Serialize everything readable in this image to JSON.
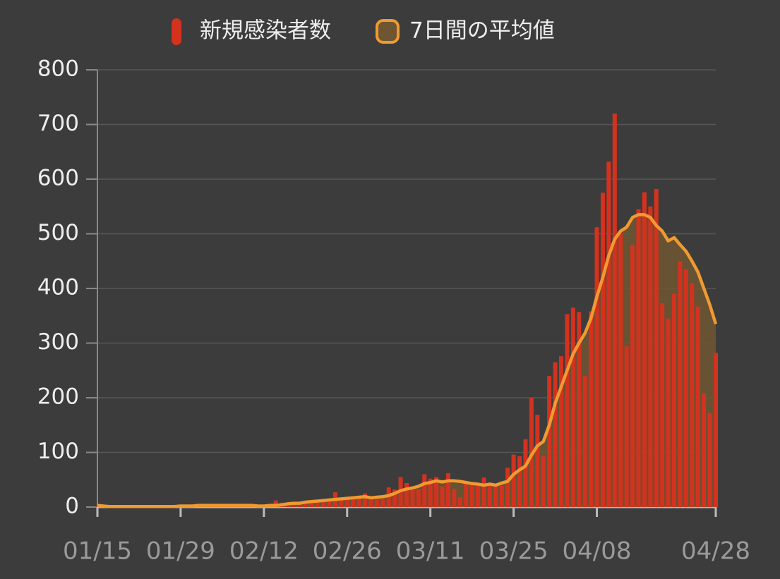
{
  "chart_data": {
    "type": "bar_line",
    "categories": [
      "01/15",
      null,
      null,
      null,
      null,
      null,
      null,
      null,
      null,
      null,
      null,
      null,
      null,
      null,
      "01/29",
      null,
      null,
      null,
      null,
      null,
      null,
      null,
      null,
      null,
      null,
      null,
      null,
      null,
      "02/12",
      null,
      null,
      null,
      null,
      null,
      null,
      null,
      null,
      null,
      null,
      null,
      null,
      null,
      "02/26",
      null,
      null,
      null,
      null,
      null,
      null,
      null,
      null,
      null,
      null,
      null,
      null,
      null,
      "03/11",
      null,
      null,
      null,
      null,
      null,
      null,
      null,
      null,
      null,
      null,
      null,
      null,
      null,
      "03/25",
      null,
      null,
      null,
      null,
      null,
      null,
      null,
      null,
      null,
      null,
      null,
      null,
      null,
      "04/08",
      null,
      null,
      null,
      null,
      null,
      null,
      null,
      null,
      null,
      null,
      null,
      null,
      null,
      null,
      null,
      null,
      null,
      null,
      null,
      "04/28"
    ],
    "series": [
      {
        "name": "新規感染者数",
        "color": "#d2321e",
        "values": [
          1,
          0,
          0,
          0,
          0,
          1,
          0,
          1,
          0,
          0,
          1,
          2,
          1,
          3,
          3,
          2,
          1,
          3,
          0,
          2,
          3,
          1,
          1,
          2,
          1,
          3,
          0,
          1,
          1,
          2,
          12,
          8,
          5,
          6,
          10,
          8,
          13,
          12,
          11,
          12,
          27,
          14,
          13,
          20,
          19,
          25,
          17,
          14,
          15,
          36,
          32,
          55,
          44,
          31,
          33,
          60,
          52,
          55,
          38,
          62,
          33,
          18,
          44,
          41,
          43,
          54,
          40,
          43,
          39,
          72,
          96,
          93,
          124,
          200,
          169,
          94,
          240,
          265,
          276,
          353,
          365,
          357,
          240,
          358,
          512,
          575,
          632,
          720,
          500,
          294,
          480,
          545,
          576,
          550,
          582,
          373,
          345,
          390,
          450,
          435,
          410,
          367,
          208,
          172,
          282
        ]
      },
      {
        "name": "7日間の平均値",
        "color": "#f09a30",
        "values": [
          3,
          2,
          1,
          1,
          1,
          1,
          1,
          1,
          1,
          1,
          1,
          1,
          1,
          1,
          2,
          2,
          2,
          3,
          3,
          3,
          3,
          3,
          3,
          3,
          3,
          3,
          3,
          2,
          2,
          3,
          3,
          4,
          6,
          7,
          7,
          9,
          10,
          11,
          12,
          13,
          14,
          15,
          16,
          17,
          18,
          19,
          17,
          18,
          19,
          21,
          25,
          30,
          33,
          35,
          38,
          43,
          45,
          48,
          46,
          48,
          48,
          47,
          45,
          43,
          42,
          40,
          42,
          40,
          44,
          47,
          60,
          68,
          75,
          95,
          112,
          120,
          150,
          190,
          220,
          250,
          280,
          300,
          318,
          345,
          385,
          420,
          460,
          490,
          505,
          512,
          530,
          535,
          535,
          530,
          515,
          505,
          487,
          493,
          480,
          468,
          450,
          430,
          400,
          370,
          335
        ]
      }
    ],
    "ylim": [
      0,
      800
    ],
    "yticks": [
      0,
      100,
      200,
      300,
      400,
      500,
      600,
      700,
      800
    ],
    "grid": true,
    "legend": "top"
  }
}
